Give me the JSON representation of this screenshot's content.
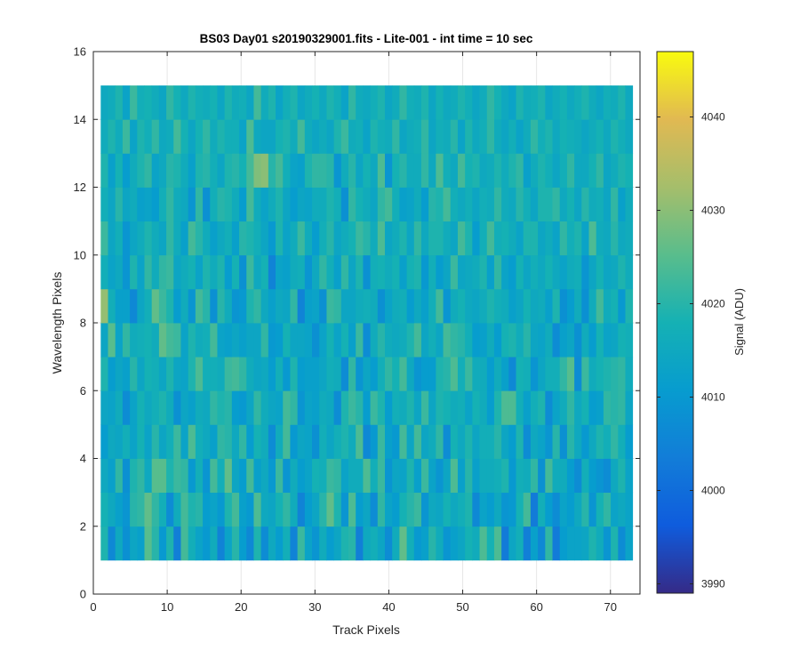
{
  "chart_data": {
    "type": "heatmap",
    "title": "BS03 Day01  s20190329001.fits - Lite-001 - int time = 10 sec",
    "xlabel": "Track Pixels",
    "ylabel": "Wavelength Pixels",
    "xlim": [
      0,
      74
    ],
    "ylim": [
      0,
      16
    ],
    "x_ticks": [
      0,
      10,
      20,
      30,
      40,
      50,
      60,
      70
    ],
    "y_ticks": [
      0,
      2,
      4,
      6,
      8,
      10,
      12,
      14,
      16
    ],
    "x_tick_labels": [
      "0",
      "10",
      "20",
      "30",
      "40",
      "50",
      "60",
      "70"
    ],
    "y_tick_labels": [
      "0",
      "2",
      "4",
      "6",
      "8",
      "10",
      "12",
      "14",
      "16"
    ],
    "x_range": [
      1,
      73
    ],
    "y_range": [
      1,
      15
    ],
    "grid": true,
    "colorbar": {
      "label": "Signal (ADU)",
      "min": 3989,
      "max": 4047,
      "ticks": [
        3990,
        4000,
        4010,
        4020,
        4030,
        4040
      ],
      "tick_labels": [
        "3990",
        "4000",
        "4010",
        "4020",
        "4030",
        "4040"
      ],
      "colormap": "parula"
    },
    "z_rows": [
      [
        4019,
        4006,
        4015,
        4008,
        4014,
        4012,
        4025,
        4020,
        4010,
        4019,
        4004,
        4023,
        4017,
        4013,
        4010,
        4016,
        4005,
        4013,
        4020,
        4011,
        4006,
        4019,
        4007,
        4015,
        4011,
        4017,
        4005,
        4022,
        4013,
        4009,
        4016,
        4011,
        4014,
        4019,
        4020,
        4004,
        4015,
        4017,
        4014,
        4007,
        4016,
        4026,
        4017,
        4010,
        4012,
        4020,
        4016,
        4009,
        4012,
        4014,
        4018,
        4016,
        4024,
        4018,
        4024,
        4003,
        4014,
        4017,
        4004,
        4012,
        4006,
        4021,
        4003,
        4011,
        4013,
        4013,
        4014,
        4019,
        4016,
        4009,
        4019,
        4007,
        4013
      ],
      [
        4018,
        4015,
        4012,
        4009,
        4020,
        4021,
        4026,
        4021,
        4017,
        4007,
        4016,
        4023,
        4019,
        4020,
        4011,
        4013,
        4010,
        4019,
        4023,
        4012,
        4010,
        4024,
        4015,
        4014,
        4018,
        4021,
        4016,
        4005,
        4011,
        4014,
        4020,
        4026,
        4019,
        4009,
        4024,
        4011,
        4014,
        4007,
        4021,
        4013,
        4011,
        4018,
        4020,
        4022,
        4009,
        4015,
        4014,
        4018,
        4015,
        4017,
        4019,
        4006,
        4013,
        4011,
        4015,
        4009,
        4010,
        4018,
        4023,
        4003,
        4017,
        4011,
        4007,
        4013,
        4011,
        4015,
        4020,
        4009,
        4018,
        4021,
        4013,
        4015,
        4013
      ],
      [
        4015,
        4012,
        4021,
        4008,
        4019,
        4021,
        4015,
        4025,
        4025,
        4019,
        4022,
        4021,
        4010,
        4017,
        4009,
        4023,
        4017,
        4026,
        4014,
        4011,
        4023,
        4012,
        4015,
        4010,
        4022,
        4009,
        4016,
        4011,
        4013,
        4018,
        4017,
        4022,
        4021,
        4013,
        4016,
        4016,
        4024,
        4017,
        4022,
        4009,
        4014,
        4013,
        4019,
        4012,
        4022,
        4013,
        4009,
        4014,
        4024,
        4012,
        4020,
        4012,
        4016,
        4016,
        4017,
        4019,
        4010,
        4017,
        4016,
        4021,
        4008,
        4023,
        4016,
        4016,
        4011,
        4007,
        4017,
        4011,
        4009,
        4007,
        4015,
        4019,
        4013
      ],
      [
        4011,
        4015,
        4014,
        4017,
        4013,
        4018,
        4013,
        4020,
        4014,
        4017,
        4022,
        4013,
        4024,
        4017,
        4015,
        4012,
        4021,
        4020,
        4015,
        4021,
        4011,
        4018,
        4016,
        4007,
        4016,
        4023,
        4010,
        4014,
        4013,
        4008,
        4017,
        4014,
        4017,
        4019,
        4016,
        4024,
        4006,
        4010,
        4022,
        4012,
        4010,
        4023,
        4014,
        4023,
        4014,
        4016,
        4021,
        4007,
        4018,
        4015,
        4019,
        4014,
        4017,
        4017,
        4020,
        4014,
        4011,
        4019,
        4007,
        4015,
        4013,
        4009,
        4020,
        4008,
        4020,
        4015,
        4010,
        4015,
        4019,
        4017,
        4021,
        4017,
        4011
      ],
      [
        4014,
        4013,
        4016,
        4007,
        4013,
        4018,
        4015,
        4017,
        4019,
        4016,
        4008,
        4014,
        4012,
        4016,
        4015,
        4021,
        4019,
        4020,
        4011,
        4010,
        4014,
        4021,
        4016,
        4014,
        4013,
        4023,
        4021,
        4009,
        4013,
        4012,
        4016,
        4015,
        4007,
        4019,
        4022,
        4020,
        4011,
        4022,
        4019,
        4011,
        4017,
        4016,
        4019,
        4014,
        4022,
        4014,
        4019,
        4018,
        4016,
        4017,
        4013,
        4018,
        4016,
        4011,
        4019,
        4024,
        4024,
        4017,
        4012,
        4017,
        4019,
        4007,
        4013,
        4016,
        4021,
        4015,
        4018,
        4011,
        4012,
        4021,
        4020,
        4021,
        4014
      ],
      [
        4019,
        4011,
        4014,
        4012,
        4020,
        4014,
        4018,
        4017,
        4014,
        4019,
        4014,
        4013,
        4019,
        4024,
        4017,
        4017,
        4016,
        4022,
        4023,
        4021,
        4016,
        4014,
        4015,
        4011,
        4017,
        4010,
        4019,
        4011,
        4012,
        4012,
        4014,
        4017,
        4016,
        4007,
        4021,
        4009,
        4014,
        4011,
        4017,
        4021,
        4018,
        4023,
        4015,
        4009,
        4011,
        4011,
        4019,
        4020,
        4024,
        4017,
        4022,
        4016,
        4016,
        4011,
        4016,
        4012,
        4006,
        4018,
        4017,
        4009,
        4014,
        4017,
        4017,
        4021,
        4025,
        4007,
        4022,
        4016,
        4018,
        4019,
        4020,
        4021,
        4016
      ],
      [
        4014,
        4025,
        4013,
        4021,
        4016,
        4017,
        4018,
        4016,
        4026,
        4023,
        4022,
        4013,
        4019,
        4016,
        4017,
        4023,
        4013,
        4012,
        4014,
        4012,
        4014,
        4014,
        4021,
        4010,
        4011,
        4018,
        4014,
        4014,
        4013,
        4008,
        4013,
        4018,
        4013,
        4018,
        4012,
        4022,
        4007,
        4016,
        4020,
        4016,
        4015,
        4016,
        4019,
        4023,
        4014,
        4017,
        4014,
        4023,
        4021,
        4020,
        4017,
        4011,
        4012,
        4016,
        4011,
        4018,
        4019,
        4016,
        4020,
        4014,
        4013,
        4016,
        4007,
        4012,
        4014,
        4008,
        4016,
        4011,
        4018,
        4013,
        4014,
        4018,
        4017
      ],
      [
        4031,
        4017,
        4012,
        4012,
        4006,
        4014,
        4017,
        4026,
        4022,
        4019,
        4011,
        4016,
        4009,
        4023,
        4020,
        4008,
        4020,
        4016,
        4009,
        4010,
        4019,
        4021,
        4015,
        4012,
        4015,
        4014,
        4021,
        4005,
        4012,
        4013,
        4008,
        4022,
        4021,
        4014,
        4014,
        4016,
        4017,
        4016,
        4008,
        4013,
        4016,
        4017,
        4011,
        4015,
        4012,
        4017,
        4023,
        4009,
        4016,
        4018,
        4015,
        4014,
        4016,
        4019,
        4017,
        4016,
        4012,
        4014,
        4018,
        4015,
        4016,
        4012,
        4019,
        4008,
        4011,
        4016,
        4008,
        4016,
        4023,
        4016,
        4018,
        4010,
        4019
      ],
      [
        4017,
        4013,
        4015,
        4009,
        4019,
        4013,
        4021,
        4016,
        4021,
        4022,
        4014,
        4016,
        4018,
        4013,
        4019,
        4016,
        4019,
        4011,
        4018,
        4008,
        4022,
        4015,
        4018,
        4005,
        4013,
        4012,
        4016,
        4017,
        4009,
        4015,
        4021,
        4017,
        4012,
        4021,
        4014,
        4019,
        4008,
        4017,
        4018,
        4016,
        4018,
        4012,
        4018,
        4019,
        4010,
        4017,
        4011,
        4014,
        4022,
        4014,
        4015,
        4016,
        4019,
        4012,
        4021,
        4013,
        4011,
        4018,
        4014,
        4017,
        4015,
        4018,
        4015,
        4013,
        4016,
        4017,
        4009,
        4014,
        4018,
        4014,
        4015,
        4019,
        4016
      ],
      [
        4022,
        4014,
        4017,
        4009,
        4014,
        4016,
        4019,
        4016,
        4014,
        4021,
        4016,
        4012,
        4023,
        4020,
        4016,
        4012,
        4015,
        4017,
        4012,
        4020,
        4019,
        4017,
        4014,
        4010,
        4019,
        4013,
        4016,
        4022,
        4016,
        4011,
        4017,
        4020,
        4014,
        4016,
        4018,
        4022,
        4020,
        4016,
        4024,
        4014,
        4016,
        4019,
        4014,
        4021,
        4015,
        4019,
        4019,
        4016,
        4014,
        4023,
        4019,
        4011,
        4017,
        4023,
        4017,
        4018,
        4016,
        4013,
        4019,
        4019,
        4014,
        4016,
        4013,
        4021,
        4017,
        4019,
        4013,
        4024,
        4016,
        4015,
        4020,
        4015,
        4016
      ],
      [
        4017,
        4014,
        4020,
        4014,
        4016,
        4012,
        4013,
        4011,
        4017,
        4021,
        4016,
        4015,
        4009,
        4021,
        4008,
        4017,
        4020,
        4019,
        4016,
        4011,
        4023,
        4016,
        4013,
        4016,
        4019,
        4014,
        4011,
        4014,
        4013,
        4016,
        4016,
        4019,
        4017,
        4008,
        4021,
        4018,
        4016,
        4014,
        4021,
        4023,
        4017,
        4012,
        4013,
        4016,
        4011,
        4020,
        4019,
        4023,
        4017,
        4015,
        4017,
        4014,
        4017,
        4016,
        4021,
        4016,
        4015,
        4020,
        4017,
        4014,
        4019,
        4019,
        4021,
        4015,
        4018,
        4014,
        4020,
        4016,
        4017,
        4014,
        4021,
        4012,
        4016
      ],
      [
        4019,
        4012,
        4018,
        4011,
        4016,
        4019,
        4021,
        4013,
        4015,
        4020,
        4019,
        4016,
        4012,
        4019,
        4020,
        4017,
        4014,
        4019,
        4020,
        4018,
        4023,
        4029,
        4030,
        4020,
        4023,
        4017,
        4013,
        4012,
        4019,
        4021,
        4021,
        4020,
        4009,
        4016,
        4020,
        4014,
        4018,
        4015,
        4024,
        4009,
        4018,
        4020,
        4016,
        4016,
        4021,
        4015,
        4024,
        4017,
        4015,
        4023,
        4018,
        4019,
        4015,
        4016,
        4019,
        4016,
        4019,
        4021,
        4012,
        4016,
        4019,
        4017,
        4014,
        4017,
        4021,
        4015,
        4015,
        4018,
        4021,
        4014,
        4016,
        4019,
        4018
      ],
      [
        4016,
        4019,
        4016,
        4022,
        4013,
        4019,
        4017,
        4021,
        4015,
        4016,
        4023,
        4018,
        4014,
        4018,
        4021,
        4016,
        4019,
        4017,
        4017,
        4013,
        4024,
        4015,
        4014,
        4014,
        4018,
        4019,
        4016,
        4023,
        4016,
        4014,
        4016,
        4014,
        4019,
        4022,
        4016,
        4017,
        4013,
        4019,
        4017,
        4016,
        4021,
        4014,
        4016,
        4017,
        4021,
        4014,
        4017,
        4016,
        4020,
        4013,
        4019,
        4015,
        4017,
        4021,
        4016,
        4014,
        4017,
        4013,
        4016,
        4021,
        4017,
        4019,
        4015,
        4018,
        4017,
        4016,
        4014,
        4016,
        4018,
        4015,
        4019,
        4017,
        4015
      ],
      [
        4015,
        4016,
        4019,
        4013,
        4022,
        4017,
        4018,
        4016,
        4014,
        4021,
        4018,
        4015,
        4019,
        4017,
        4016,
        4018,
        4014,
        4019,
        4016,
        4017,
        4014,
        4023,
        4016,
        4019,
        4013,
        4017,
        4019,
        4014,
        4016,
        4018,
        4015,
        4019,
        4017,
        4013,
        4021,
        4016,
        4015,
        4017,
        4019,
        4014,
        4016,
        4021,
        4017,
        4016,
        4019,
        4014,
        4018,
        4015,
        4016,
        4019,
        4017,
        4014,
        4016,
        4021,
        4018,
        4015,
        4013,
        4019,
        4016,
        4017,
        4019,
        4014,
        4016,
        4018,
        4015,
        4017,
        4019,
        4016,
        4014,
        4017,
        4016,
        4019,
        4015
      ]
    ]
  }
}
